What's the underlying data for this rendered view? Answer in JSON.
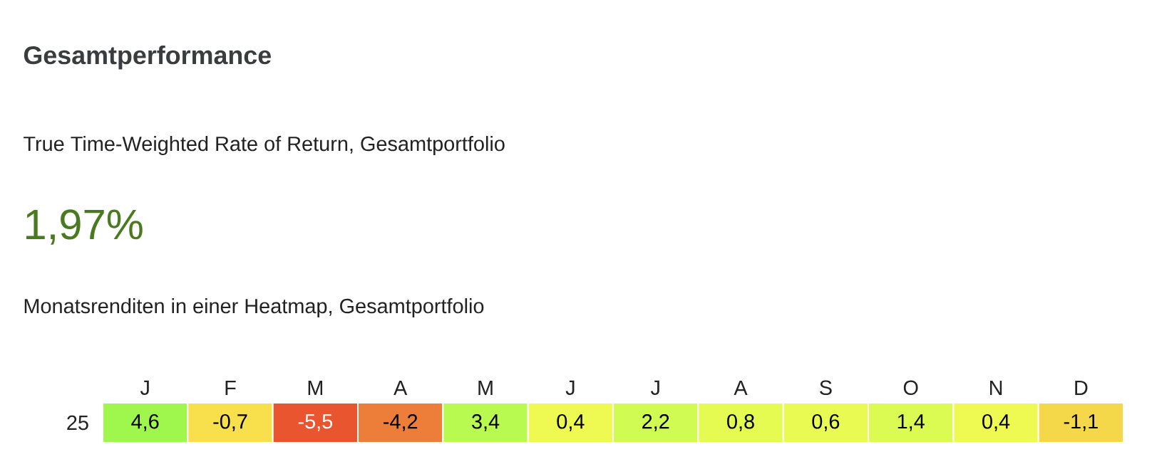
{
  "chart_data": {
    "type": "heatmap",
    "title": "Gesamtperformance",
    "subtitle": "True Time-Weighted Rate of Return, Gesamtportfolio",
    "annotations": [
      "1,97%",
      "Monatsrenditen in einer Heatmap, Gesamtportfolio"
    ],
    "categories": [
      "J",
      "F",
      "M",
      "A",
      "M",
      "J",
      "J",
      "A",
      "S",
      "O",
      "N",
      "D"
    ],
    "y_categories": [
      "25"
    ],
    "cells": [
      [
        4.6,
        -0.7,
        -5.5,
        -4.2,
        3.4,
        0.4,
        2.2,
        0.8,
        0.6,
        1.4,
        0.4,
        -1.1
      ]
    ],
    "cell_labels": [
      [
        "4,6",
        "-0,7",
        "-5,5",
        "-4,2",
        "3,4",
        "0,4",
        "2,2",
        "0,8",
        "0,6",
        "1,4",
        "0,4",
        "-1,1"
      ]
    ]
  }
}
